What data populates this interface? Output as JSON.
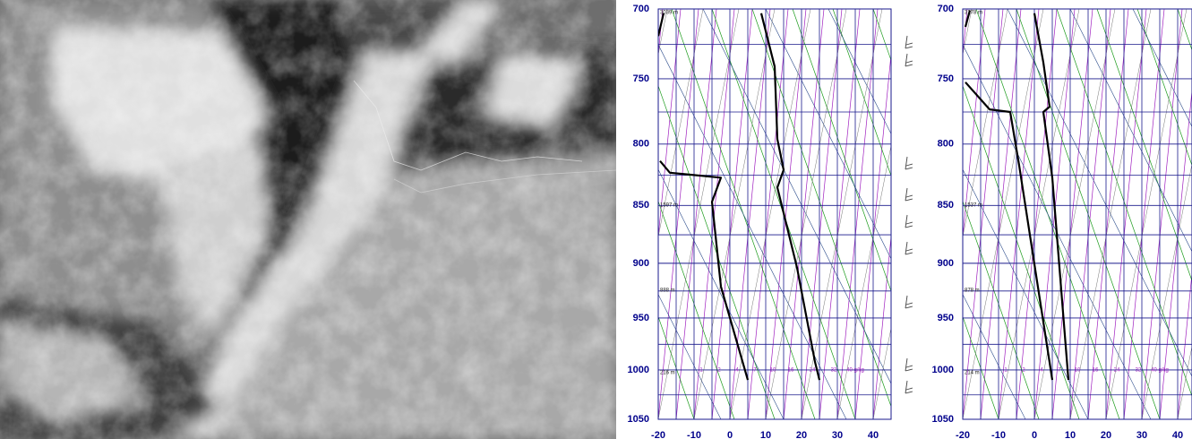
{
  "chart_data": [
    {
      "type": "line",
      "xlim": [
        -20,
        45
      ],
      "xticks": [
        -20,
        -10,
        0,
        10,
        20,
        30,
        40
      ],
      "minor_xticks": [
        -15,
        -5,
        5,
        15,
        25,
        35,
        45
      ],
      "ylim": [
        1050,
        700
      ],
      "yticks": [
        700,
        750,
        800,
        850,
        900,
        950,
        1000,
        1050
      ],
      "minor_yticks": [
        725,
        775,
        825,
        875,
        925,
        975,
        1025
      ],
      "y_log": true,
      "grid": true,
      "grid_color": "#1a1a8c",
      "tick_color": "#00008b",
      "height_labels": [
        "3039 m",
        "1597 m",
        "888 m",
        "216 m"
      ],
      "mixing_ratio_labels": [
        "1",
        "2",
        "4",
        "7",
        "10",
        "16",
        "24",
        "32",
        "40 g/kg"
      ],
      "series": [
        {
          "color": "#000000",
          "x": [
            -18.5,
            -20,
            null,
            -19.5,
            -16.75,
            -2.5,
            -5,
            -2.5,
            5
          ],
          "values": [
            703,
            719,
            null,
            813.5,
            823,
            827,
            847,
            921,
            1010
          ]
        },
        {
          "color": "#000000",
          "x": [
            8.75,
            12.5,
            13.25,
            15,
            13.25,
            18.75,
            23.75,
            25
          ],
          "values": [
            703,
            741,
            796,
            820.6,
            835,
            904,
            992,
            1010
          ]
        }
      ]
    },
    {
      "type": "line",
      "xlim": [
        -20,
        44
      ],
      "xticks": [
        -20,
        -10,
        0,
        10,
        20,
        30,
        40
      ],
      "minor_xticks": [
        -15,
        -5,
        5,
        15,
        25,
        35
      ],
      "ylim": [
        1050,
        700
      ],
      "yticks": [
        700,
        750,
        800,
        850,
        900,
        950,
        1000,
        1050
      ],
      "minor_yticks": [
        725,
        775,
        825,
        875,
        925,
        975,
        1025
      ],
      "y_log": true,
      "grid": true,
      "grid_color": "#1a1a8c",
      "tick_color": "#00008b",
      "height_labels": [
        "3178 m",
        "1537 m",
        "878 m",
        "214 m"
      ],
      "mixing_ratio_labels": [
        "1",
        "2",
        "4",
        "7",
        "10",
        "16",
        "24",
        "32",
        "40 g/kg"
      ],
      "series": [
        {
          "color": "#000000",
          "x": [
            -18,
            -19.25,
            null,
            -19.25,
            -12.5,
            -6.75,
            -4.25,
            5
          ],
          "values": [
            701,
            712.5,
            null,
            752.6,
            773,
            775,
            817,
            1010
          ]
        },
        {
          "color": "#000000",
          "x": [
            0,
            2.5,
            4.25,
            2.5,
            5,
            9.5
          ],
          "values": [
            703,
            738,
            771,
            775,
            827,
            1010
          ]
        }
      ]
    }
  ]
}
